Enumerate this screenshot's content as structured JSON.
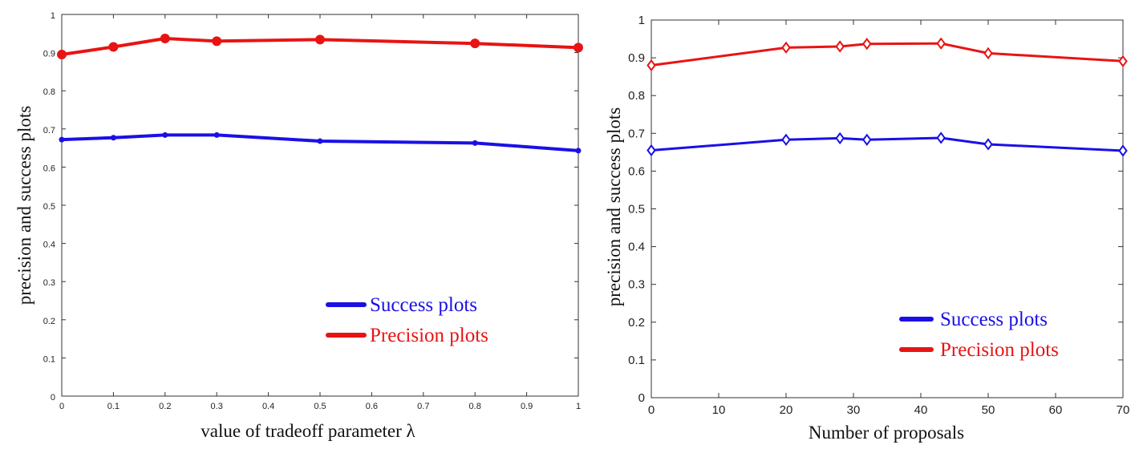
{
  "chart_data": [
    {
      "type": "line",
      "xlabel": "value of tradeoff parameter λ",
      "ylabel": "precision and success plots",
      "xlim": [
        0,
        1
      ],
      "ylim": [
        0,
        1
      ],
      "xticks": [
        "0",
        "0.1",
        "0.2",
        "0.3",
        "0.4",
        "0.5",
        "0.6",
        "0.7",
        "0.8",
        "0.9",
        "1"
      ],
      "yticks": [
        "0",
        "0.1",
        "0.2",
        "0.3",
        "0.4",
        "0.5",
        "0.6",
        "0.7",
        "0.8",
        "0.9",
        "1"
      ],
      "grid": false,
      "legend_position": "lower-right",
      "x": [
        0,
        0.1,
        0.2,
        0.3,
        0.5,
        0.8,
        1.0
      ],
      "series": [
        {
          "name": "Success plots",
          "color": "#1a10e6",
          "marker": "dot",
          "values": [
            0.672,
            0.677,
            0.684,
            0.684,
            0.668,
            0.663,
            0.643
          ]
        },
        {
          "name": "Precision plots",
          "color": "#e81414",
          "marker": "circle",
          "values": [
            0.895,
            0.915,
            0.937,
            0.93,
            0.934,
            0.924,
            0.913
          ]
        }
      ]
    },
    {
      "type": "line",
      "xlabel": "Number of proposals",
      "ylabel": "precision and success plots",
      "xlim": [
        0,
        70
      ],
      "ylim": [
        0,
        1
      ],
      "xticks": [
        "0",
        "10",
        "20",
        "30",
        "40",
        "50",
        "60",
        "70"
      ],
      "yticks": [
        "0",
        "0.1",
        "0.2",
        "0.3",
        "0.4",
        "0.5",
        "0.6",
        "0.7",
        "0.8",
        "0.9",
        "1"
      ],
      "grid": false,
      "legend_position": "lower-right",
      "x": [
        0,
        20,
        28,
        32,
        43,
        50,
        70
      ],
      "series": [
        {
          "name": "Success plots",
          "color": "#1a10e6",
          "marker": "diamond",
          "values": [
            0.655,
            0.683,
            0.687,
            0.683,
            0.688,
            0.671,
            0.654
          ]
        },
        {
          "name": "Precision plots",
          "color": "#e81414",
          "marker": "diamond",
          "values": [
            0.88,
            0.927,
            0.93,
            0.937,
            0.938,
            0.912,
            0.891
          ]
        }
      ]
    }
  ]
}
